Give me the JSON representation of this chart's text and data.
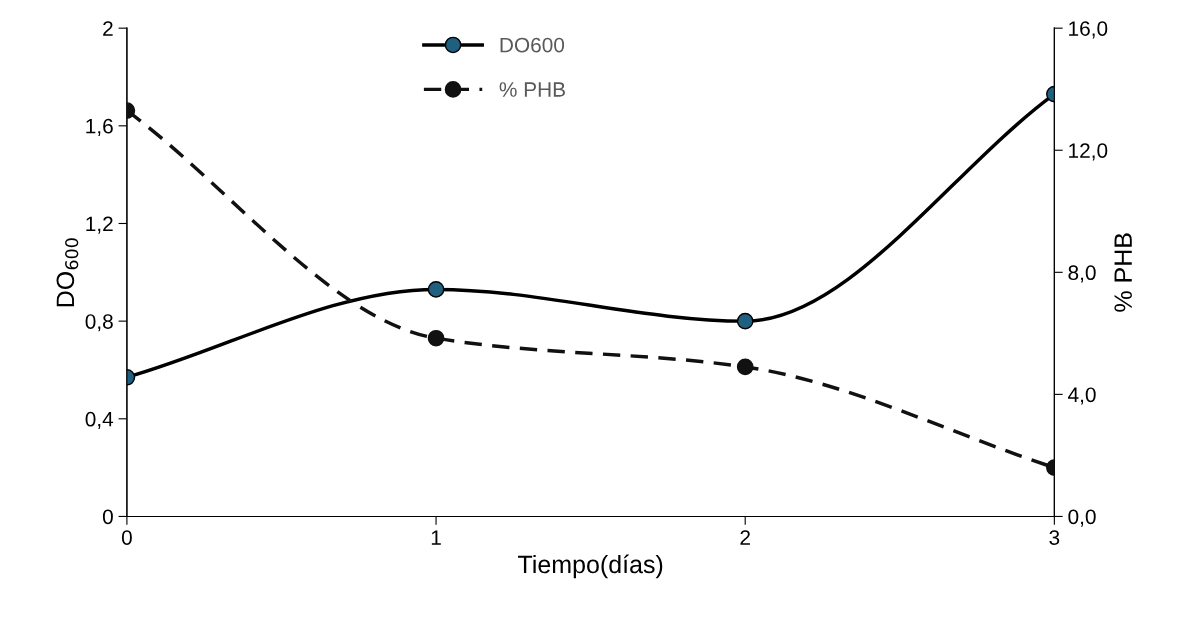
{
  "chart_data": {
    "type": "line",
    "xlabel": "Tiempo(días)",
    "ylabel": "DO$_{600}$",
    "y2label": "% PHB",
    "x": [
      0,
      1,
      2,
      3
    ],
    "series": [
      {
        "name": "DO600",
        "color": "#000000",
        "colors": [
          "#1f5f80",
          "#1f5f80",
          "#1f5f80",
          "#1f5f80"
        ],
        "values": [
          0.57,
          0.93,
          0.8,
          1.73
        ],
        "line_style": "solid"
      },
      {
        "name": "% PHB",
        "color": "#111111",
        "values": [
          13.3,
          5.84,
          4.9,
          1.6
        ],
        "axis": "y2",
        "line_style": "dashed"
      }
    ],
    "xlim": [
      0,
      3
    ],
    "xticks": [
      0,
      1,
      2,
      3
    ],
    "ylim": [
      0,
      2
    ],
    "yticks": [
      0,
      {
        "value": 0.4,
        "label": "0,4"
      },
      {
        "value": 0.8,
        "label": "0,8"
      },
      {
        "value": 1.2,
        "label": "1,2"
      },
      {
        "value": 1.6,
        "label": "1,6"
      },
      2
    ],
    "y2lim": [
      0,
      16
    ],
    "y2ticks": [
      {
        "value": 0,
        "label": "0,0"
      },
      {
        "value": 4,
        "label": "4,0"
      },
      {
        "value": 8,
        "label": "8,0"
      },
      {
        "value": 12,
        "label": "12,0"
      },
      {
        "value": 16,
        "label": "16,0"
      }
    ],
    "marker": "circle",
    "grid": false,
    "legend": "top left"
  }
}
